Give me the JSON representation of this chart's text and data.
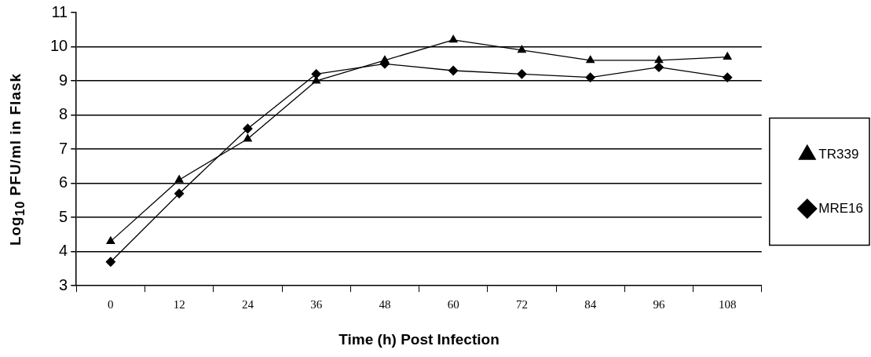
{
  "chart_data": {
    "type": "line",
    "xlabel": "Time (h) Post Infection",
    "ylabel": "Log$_{10}$ PFU/ml in Flask",
    "categories": [
      "0",
      "12",
      "24",
      "36",
      "48",
      "60",
      "72",
      "84",
      "96",
      "108"
    ],
    "series": [
      {
        "name": "MRE16",
        "color": "#000000",
        "marker": "diamond",
        "values": [
          3.7,
          5.7,
          7.6,
          9.2,
          9.5,
          9.3,
          9.2,
          9.1,
          9.4,
          9.1
        ]
      },
      {
        "name": "TR339",
        "color": "#000000",
        "marker": "triangle",
        "values": [
          4.3,
          6.1,
          7.3,
          9.0,
          9.6,
          10.2,
          9.9,
          9.6,
          9.6,
          9.7
        ]
      }
    ],
    "ylim": [
      3,
      11
    ],
    "yticks": [
      3,
      4,
      5,
      6,
      7,
      8,
      9,
      10,
      11
    ],
    "grid": "y",
    "legend": "right",
    "line_style": "solid"
  }
}
